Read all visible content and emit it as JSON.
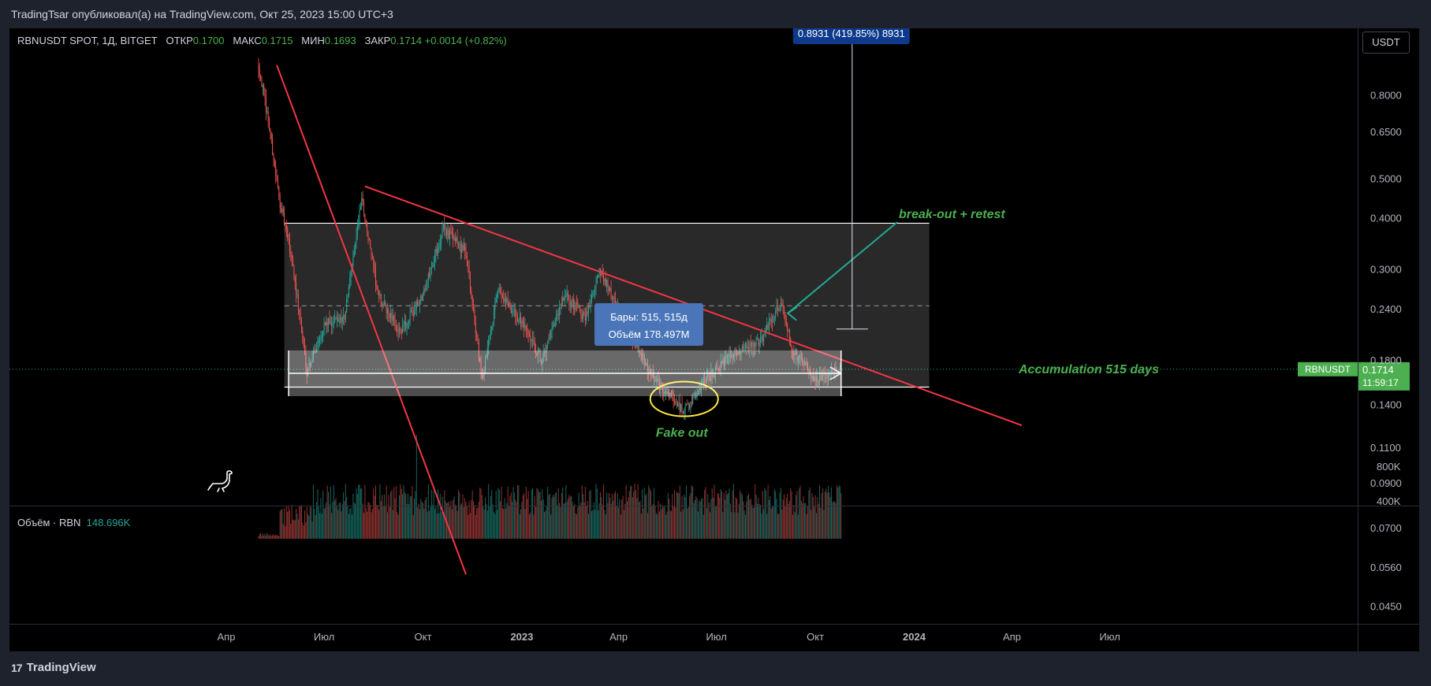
{
  "header": {
    "published": "TradingTsar опубликовал(а) на TradingView.com, Окт 25, 2023 15:00 UTC+3"
  },
  "legend": {
    "symbol": "RBNUSDT SPOT, 1Д, BITGET",
    "open_label": "ОТКР",
    "open": "0.1700",
    "high_label": "МАКС",
    "high": "0.1715",
    "low_label": "МИН",
    "low": "0.1693",
    "close_label": "ЗАКР",
    "close": "0.1714",
    "change": "+0.0014 (+0.82%)"
  },
  "volume_legend": {
    "label": "Объём · RBN",
    "value": "148.696K"
  },
  "scale_button": "USDT",
  "price_axis": {
    "ticks": [
      "0.8000",
      "0.6500",
      "0.5000",
      "0.4000",
      "0.3000",
      "0.2400",
      "0.1800",
      "0.1400",
      "0.1100",
      "0.0900",
      "0.0700",
      "0.0560",
      "0.0450"
    ],
    "symbol_tag": "RBNUSDT",
    "current_price": "0.1714",
    "countdown": "11:59:17"
  },
  "volume_axis": {
    "ticks": [
      "800K",
      "400K"
    ]
  },
  "time_axis": {
    "ticks": [
      "Апр",
      "Июл",
      "Окт",
      "2023",
      "Апр",
      "Июл",
      "Окт",
      "2024",
      "Апр",
      "Июл"
    ]
  },
  "annotations": {
    "measure": "0.8931 (419.85%) 8931",
    "bars_line1": "Бары: 515, 515д",
    "bars_line2": "Объём 178.497M",
    "fake_out": "Fake out",
    "breakout": "break-out + retest",
    "accumulation": "Accumulation 515 days"
  },
  "colors": {
    "background": "#000000",
    "up": "#26a69a",
    "down": "#ef5350",
    "trendline": "#f23645",
    "annotation_green": "#4caf50",
    "highlight_yellow": "#ffeb3b",
    "measure_box": "#0d3a8c",
    "price_tag": "#4caf50"
  },
  "footer": {
    "brand": "TradingView",
    "brand_icon": "tradingview-logo-icon"
  },
  "chart_data": {
    "type": "candlestick",
    "symbol": "RBNUSDT",
    "interval": "1D",
    "scale": "log",
    "y_ticks": [
      0.8,
      0.65,
      0.5,
      0.4,
      0.3,
      0.24,
      0.18,
      0.14,
      0.11,
      0.09,
      0.07,
      0.056,
      0.045
    ],
    "x_ticks": [
      "Апр",
      "Июл",
      "Окт",
      "2023",
      "Апр",
      "Июл",
      "Окт",
      "2024",
      "Апр",
      "Июл"
    ],
    "range_box": {
      "upper": 0.39,
      "lower": 0.155,
      "mid": 0.245
    },
    "last": {
      "open": 0.17,
      "high": 0.1715,
      "low": 0.1693,
      "close": 0.1714
    },
    "price_path": [
      {
        "date": "2022-05-01",
        "price": 0.95
      },
      {
        "date": "2022-05-10",
        "price": 0.7
      },
      {
        "date": "2022-05-20",
        "price": 0.45
      },
      {
        "date": "2022-06-01",
        "price": 0.32
      },
      {
        "date": "2022-06-15",
        "price": 0.17
      },
      {
        "date": "2022-07-01",
        "price": 0.22
      },
      {
        "date": "2022-07-20",
        "price": 0.23
      },
      {
        "date": "2022-08-05",
        "price": 0.45
      },
      {
        "date": "2022-08-20",
        "price": 0.26
      },
      {
        "date": "2022-09-10",
        "price": 0.21
      },
      {
        "date": "2022-10-01",
        "price": 0.26
      },
      {
        "date": "2022-10-20",
        "price": 0.38
      },
      {
        "date": "2022-11-10",
        "price": 0.33
      },
      {
        "date": "2022-11-25",
        "price": 0.16
      },
      {
        "date": "2022-12-10",
        "price": 0.27
      },
      {
        "date": "2023-01-01",
        "price": 0.22
      },
      {
        "date": "2023-01-20",
        "price": 0.18
      },
      {
        "date": "2023-02-10",
        "price": 0.26
      },
      {
        "date": "2023-03-01",
        "price": 0.23
      },
      {
        "date": "2023-03-15",
        "price": 0.3
      },
      {
        "date": "2023-04-10",
        "price": 0.21
      },
      {
        "date": "2023-05-05",
        "price": 0.16
      },
      {
        "date": "2023-06-01",
        "price": 0.135
      },
      {
        "date": "2023-06-20",
        "price": 0.16
      },
      {
        "date": "2023-07-15",
        "price": 0.185
      },
      {
        "date": "2023-08-10",
        "price": 0.2
      },
      {
        "date": "2023-08-30",
        "price": 0.25
      },
      {
        "date": "2023-09-10",
        "price": 0.19
      },
      {
        "date": "2023-10-01",
        "price": 0.162
      },
      {
        "date": "2023-10-25",
        "price": 0.1714
      }
    ]
  }
}
